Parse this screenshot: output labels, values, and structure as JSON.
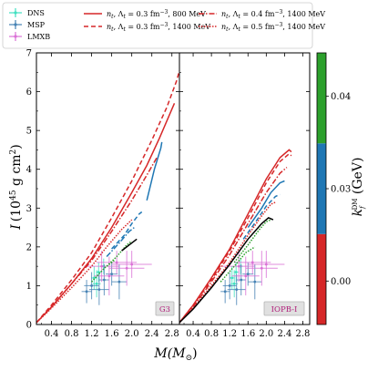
{
  "chart_data": {
    "type": "line",
    "ylabel_main": "I",
    "ylabel_units": "(10",
    "ylabel_exp": "45",
    "ylabel_rest": " g cm",
    "ylabel_sq": "2",
    "ylabel_close": ")",
    "xlabel_main": "M(M",
    "xlabel_sub": "⊙",
    "xlabel_close": ")",
    "xlim": [
      0.1,
      2.95
    ],
    "ylim": [
      0,
      7
    ],
    "xticks": [
      0.4,
      0.8,
      1.2,
      1.6,
      2.0,
      2.4,
      2.8
    ],
    "xtick_labels": [
      "0.4",
      "0.8",
      "1.2",
      "1.6",
      "2.0",
      "2.4",
      "2.8"
    ],
    "yticks": [
      0,
      1,
      2,
      3,
      4,
      5,
      6,
      7
    ],
    "ytick_labels": [
      "0",
      "1",
      "2",
      "3",
      "4",
      "5",
      "6",
      "7"
    ],
    "legend": {
      "obs": [
        {
          "label": "DNS",
          "color": "#40e0c0"
        },
        {
          "label": "MSP",
          "color": "#4682b4"
        },
        {
          "label": "LMXB",
          "color": "#da70d6"
        }
      ],
      "lines": [
        {
          "label": "n",
          "sub": "t",
          "mid": ", Λ",
          "sub2": "t",
          "rest": " = 0.3 fm",
          "exp": "−3",
          "tail": ", 800 MeV",
          "color": "#d62728",
          "dash": ""
        },
        {
          "label": "n",
          "sub": "t",
          "mid": ", Λ",
          "sub2": "t",
          "rest": " = 0.3 fm",
          "exp": "−3",
          "tail": ", 1400 MeV",
          "color": "#d62728",
          "dash": "5,3"
        },
        {
          "label": "n",
          "sub": "t",
          "mid": ", Λ",
          "sub2": "t",
          "rest": " = 0.4 fm",
          "exp": "−3",
          "tail": ", 1400 MeV",
          "color": "#d62728",
          "dash": "6,2,1.5,2"
        },
        {
          "label": "n",
          "sub": "t",
          "mid": ", Λ",
          "sub2": "t",
          "rest": " = 0.5 fm",
          "exp": "−3",
          "tail": ", 1400 MeV",
          "color": "#d62728",
          "dash": "1.5,1.5"
        }
      ]
    },
    "panels": [
      {
        "label": "G3",
        "red_curves": [
          {
            "x": [
              0.1,
              0.4,
              0.8,
              1.2,
              1.6,
              2.0,
              2.3,
              2.55,
              2.75,
              2.85
            ],
            "y": [
              0.05,
              0.45,
              1.05,
              1.7,
              2.5,
              3.4,
              4.1,
              4.8,
              5.4,
              5.7
            ],
            "dash": ""
          },
          {
            "x": [
              0.1,
              0.4,
              0.8,
              1.2,
              1.6,
              2.0,
              2.4,
              2.7,
              2.9,
              2.95
            ],
            "y": [
              0.05,
              0.5,
              1.15,
              1.85,
              2.75,
              3.7,
              4.75,
              5.6,
              6.3,
              6.55
            ],
            "dash": "5,3"
          },
          {
            "x": [
              0.1,
              0.4,
              0.8,
              1.2,
              1.6,
              2.0,
              2.3,
              2.5
            ],
            "y": [
              0.05,
              0.45,
              1.05,
              1.65,
              2.4,
              3.2,
              3.85,
              4.3
            ],
            "dash": "6,2,1.5,2"
          },
          {
            "x": [
              0.1,
              0.4,
              0.8,
              1.2,
              1.5,
              1.8,
              2.0
            ],
            "y": [
              0.05,
              0.42,
              0.95,
              1.5,
              2.0,
              2.45,
              2.7
            ],
            "dash": "1.5,1.5"
          }
        ],
        "blue_curves": [
          {
            "x": [
              2.3,
              2.45,
              2.58,
              2.6
            ],
            "y": [
              3.2,
              4.0,
              4.55,
              4.7
            ],
            "dash": ""
          },
          {
            "x": [
              1.6,
              1.85,
              2.0,
              2.15,
              2.2
            ],
            "y": [
              1.95,
              2.3,
              2.6,
              2.85,
              2.9
            ],
            "dash": "5,3"
          },
          {
            "x": [
              1.5,
              1.75,
              1.95,
              2.05
            ],
            "y": [
              1.75,
              2.1,
              2.4,
              2.5
            ],
            "dash": "6,2,1.5,2"
          }
        ],
        "green_curves": [
          {
            "x": [
              1.5,
              1.7,
              1.9,
              2.0
            ],
            "y": [
              1.5,
              1.75,
              2.05,
              2.15
            ],
            "dash": "1.5,1.5"
          },
          {
            "x": [
              1.2,
              1.45,
              1.65
            ],
            "y": [
              1.1,
              1.45,
              1.65
            ],
            "dash": "1.5,1.5"
          }
        ],
        "black_curve": {
          "x": [
            1.8,
            1.95,
            2.1
          ],
          "y": [
            1.9,
            2.05,
            2.2
          ]
        }
      },
      {
        "label": "IOPB-I",
        "red_curves": [
          {
            "x": [
              0.1,
              0.4,
              0.8,
              1.2,
              1.6,
              2.0,
              2.3,
              2.5,
              2.55
            ],
            "y": [
              0.05,
              0.5,
              1.2,
              1.95,
              2.85,
              3.75,
              4.3,
              4.5,
              4.45
            ],
            "dash": ""
          },
          {
            "x": [
              0.1,
              0.4,
              0.8,
              1.2,
              1.6,
              2.0,
              2.3,
              2.5,
              2.55
            ],
            "y": [
              0.05,
              0.5,
              1.15,
              1.9,
              2.75,
              3.65,
              4.2,
              4.4,
              4.35
            ],
            "dash": "5,3"
          },
          {
            "x": [
              0.1,
              0.4,
              0.8,
              1.2,
              1.6,
              2.0,
              2.3,
              2.45
            ],
            "y": [
              0.05,
              0.45,
              1.1,
              1.8,
              2.6,
              3.4,
              3.9,
              4.05
            ],
            "dash": "6,2,1.5,2"
          },
          {
            "x": [
              0.1,
              0.4,
              0.8,
              1.2,
              1.6,
              1.9,
              2.1,
              2.2
            ],
            "y": [
              0.05,
              0.42,
              1.0,
              1.6,
              2.3,
              2.8,
              3.1,
              3.15
            ],
            "dash": "1.5,1.5"
          }
        ],
        "blue_curves": [
          {
            "x": [
              1.6,
              1.9,
              2.1,
              2.3,
              2.4
            ],
            "y": [
              2.5,
              3.0,
              3.4,
              3.65,
              3.7
            ],
            "dash": ""
          },
          {
            "x": [
              1.5,
              1.8,
              2.0,
              2.2,
              2.3
            ],
            "y": [
              2.2,
              2.7,
              3.05,
              3.3,
              3.35
            ],
            "dash": "5,3"
          }
        ],
        "green_curves": [
          {
            "x": [
              1.3,
              1.6,
              1.85,
              2.0,
              2.1
            ],
            "y": [
              1.6,
              2.05,
              2.45,
              2.65,
              2.7
            ],
            "dash": "1.5,1.5"
          },
          {
            "x": [
              1.0,
              1.3,
              1.55,
              1.75
            ],
            "y": [
              1.1,
              1.5,
              1.85,
              2.0
            ],
            "dash": "1.5,1.5"
          }
        ],
        "black_curve": {
          "x": [
            0.1,
            0.4,
            0.8,
            1.2,
            1.6,
            1.9,
            2.05,
            2.15
          ],
          "y": [
            0.05,
            0.4,
            0.95,
            1.55,
            2.2,
            2.6,
            2.75,
            2.7
          ]
        }
      }
    ],
    "observations": {
      "DNS": [
        {
          "m": 1.34,
          "merr": 0.05,
          "i": 1.35,
          "ierr": 0.25
        },
        {
          "m": 1.25,
          "merr": 0.06,
          "i": 1.2,
          "ierr": 0.3
        },
        {
          "m": 1.44,
          "merr": 0.04,
          "i": 1.5,
          "ierr": 0.2
        },
        {
          "m": 1.3,
          "merr": 0.08,
          "i": 1.05,
          "ierr": 0.35
        }
      ],
      "MSP": [
        {
          "m": 1.2,
          "merr": 0.15,
          "i": 1.0,
          "ierr": 0.35
        },
        {
          "m": 1.45,
          "merr": 0.1,
          "i": 1.15,
          "ierr": 0.4
        },
        {
          "m": 1.6,
          "merr": 0.12,
          "i": 1.3,
          "ierr": 0.3
        },
        {
          "m": 1.1,
          "merr": 0.1,
          "i": 0.85,
          "ierr": 0.3
        },
        {
          "m": 1.75,
          "merr": 0.15,
          "i": 1.1,
          "ierr": 0.45
        },
        {
          "m": 1.35,
          "merr": 0.2,
          "i": 0.9,
          "ierr": 0.4
        }
      ],
      "LMXB": [
        {
          "m": 1.4,
          "merr": 0.35,
          "i": 1.5,
          "ierr": 0.4
        },
        {
          "m": 1.7,
          "merr": 0.4,
          "i": 1.6,
          "ierr": 0.3
        },
        {
          "m": 1.9,
          "merr": 0.35,
          "i": 1.45,
          "ierr": 0.45
        },
        {
          "m": 1.55,
          "merr": 0.3,
          "i": 1.25,
          "ierr": 0.5
        },
        {
          "m": 2.0,
          "merr": 0.4,
          "i": 1.55,
          "ierr": 0.35
        }
      ]
    },
    "colorbar": {
      "label_main": "k",
      "label_sub": "f",
      "label_sup": "DM",
      "label_units": " (GeV)",
      "ticks": [
        0.0,
        0.03,
        0.04
      ],
      "tick_labels": [
        "0.00",
        "0.03",
        "0.04"
      ],
      "segments": [
        {
          "from": 0.0,
          "to": 0.333,
          "color": "#d62728"
        },
        {
          "from": 0.333,
          "to": 0.667,
          "color": "#1f77b4"
        },
        {
          "from": 0.667,
          "to": 1.0,
          "color": "#2ca02c"
        }
      ]
    }
  }
}
